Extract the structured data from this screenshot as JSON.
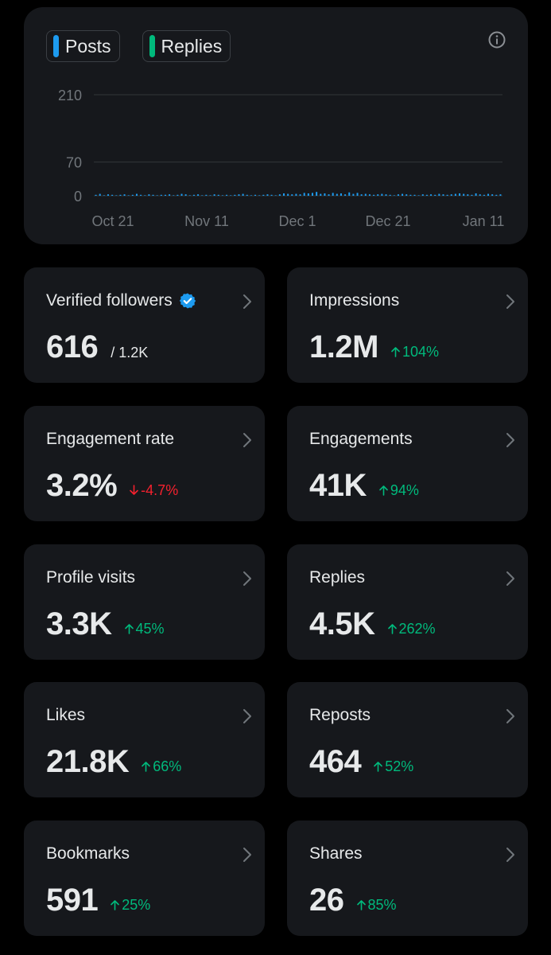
{
  "legend": [
    {
      "label": "Posts",
      "color": "#1d9bf0"
    },
    {
      "label": "Replies",
      "color": "#00ba7c"
    }
  ],
  "chart_data": {
    "type": "bar",
    "y_ticks": [
      "210",
      "70",
      "0"
    ],
    "y_tick_values": [
      210,
      70,
      0
    ],
    "ylim": [
      0,
      210
    ],
    "x_tick_labels": [
      "Oct 21",
      "Nov 11",
      "Dec 1",
      "Dec 21",
      "Jan 11"
    ],
    "grid": true,
    "series": [
      {
        "name": "Posts",
        "color": "#1d9bf0",
        "values": [
          2,
          4,
          1,
          3,
          2,
          1,
          2,
          3,
          1,
          2,
          4,
          2,
          1,
          3,
          2,
          1,
          2,
          2,
          3,
          1,
          2,
          4,
          3,
          1,
          2,
          3,
          1,
          2,
          1,
          3,
          2,
          1,
          2,
          1,
          2,
          3,
          4,
          2,
          1,
          2,
          1,
          2,
          3,
          2,
          1,
          3,
          5,
          4,
          3,
          4,
          3,
          6,
          5,
          6,
          8,
          4,
          5,
          3,
          6,
          4,
          5,
          3,
          7,
          4,
          6,
          3,
          4,
          3,
          2,
          3,
          4,
          3,
          2,
          1,
          3,
          4,
          3,
          2,
          2,
          1,
          3,
          2,
          3,
          2,
          4,
          3,
          2,
          3,
          4,
          5,
          4,
          3,
          2,
          5,
          3,
          2,
          4,
          3,
          2,
          3
        ]
      },
      {
        "name": "Replies",
        "color": "#00ba7c",
        "values": [
          0,
          0,
          0,
          0,
          0,
          0,
          0,
          0,
          0,
          0,
          0,
          0,
          0,
          0,
          0,
          0,
          0,
          0,
          0,
          0,
          0,
          0,
          0,
          0,
          0,
          0,
          0,
          0,
          0,
          0,
          0,
          0,
          0,
          0,
          0,
          0,
          0,
          0,
          0,
          0,
          0,
          0,
          0,
          0,
          0,
          0,
          0,
          0,
          0,
          0,
          0,
          0,
          0,
          0,
          0,
          0,
          0,
          0,
          0,
          0,
          0,
          0,
          0,
          0,
          0,
          0,
          0,
          0,
          0,
          0,
          0,
          0,
          0,
          0,
          0,
          0,
          0,
          0,
          0,
          0,
          0,
          0,
          0,
          0,
          0,
          0,
          0,
          0,
          0,
          0,
          0,
          0,
          0,
          0,
          0,
          0,
          0,
          0,
          0,
          0
        ]
      }
    ]
  },
  "stats": [
    {
      "label": "Verified followers",
      "value": "616",
      "sub": "/ 1.2K",
      "verified": true
    },
    {
      "label": "Impressions",
      "value": "1.2M",
      "change": "104%",
      "direction": "up"
    },
    {
      "label": "Engagement rate",
      "value": "3.2%",
      "change": "-4.7%",
      "direction": "down"
    },
    {
      "label": "Engagements",
      "value": "41K",
      "change": "94%",
      "direction": "up"
    },
    {
      "label": "Profile visits",
      "value": "3.3K",
      "change": "45%",
      "direction": "up"
    },
    {
      "label": "Replies",
      "value": "4.5K",
      "change": "262%",
      "direction": "up"
    },
    {
      "label": "Likes",
      "value": "21.8K",
      "change": "66%",
      "direction": "up"
    },
    {
      "label": "Reposts",
      "value": "464",
      "change": "52%",
      "direction": "up"
    },
    {
      "label": "Bookmarks",
      "value": "591",
      "change": "25%",
      "direction": "up"
    },
    {
      "label": "Shares",
      "value": "26",
      "change": "85%",
      "direction": "up"
    }
  ]
}
